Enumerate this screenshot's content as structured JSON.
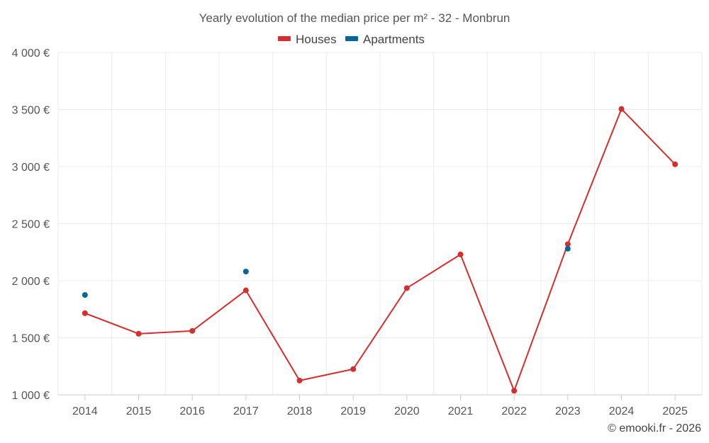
{
  "chart_data": {
    "type": "line",
    "title": "Yearly evolution of the median price per m² - 32 - Monbrun",
    "categories": [
      "2014",
      "2015",
      "2016",
      "2017",
      "2018",
      "2019",
      "2020",
      "2021",
      "2022",
      "2023",
      "2024",
      "2025"
    ],
    "ylim": [
      1000,
      4000
    ],
    "y_ticks": [
      1000,
      1500,
      2000,
      2500,
      3000,
      3500,
      4000
    ],
    "y_tick_labels": [
      "1 000 €",
      "1 500 €",
      "2 000 €",
      "2 500 €",
      "3 000 €",
      "3 500 €",
      "4 000 €"
    ],
    "series": [
      {
        "name": "Houses",
        "color": "#d32f2f",
        "style": "line+markers",
        "values": [
          1715,
          1535,
          1560,
          1915,
          1125,
          1225,
          1935,
          2230,
          1035,
          2320,
          3505,
          3020
        ]
      },
      {
        "name": "Apartments",
        "color": "#01669e",
        "style": "markers",
        "values": [
          1875,
          null,
          null,
          2080,
          null,
          null,
          null,
          null,
          null,
          2280,
          null,
          null
        ]
      }
    ],
    "legend_position": "top-center",
    "grid": true
  },
  "credit": "© emooki.fr - 2026"
}
